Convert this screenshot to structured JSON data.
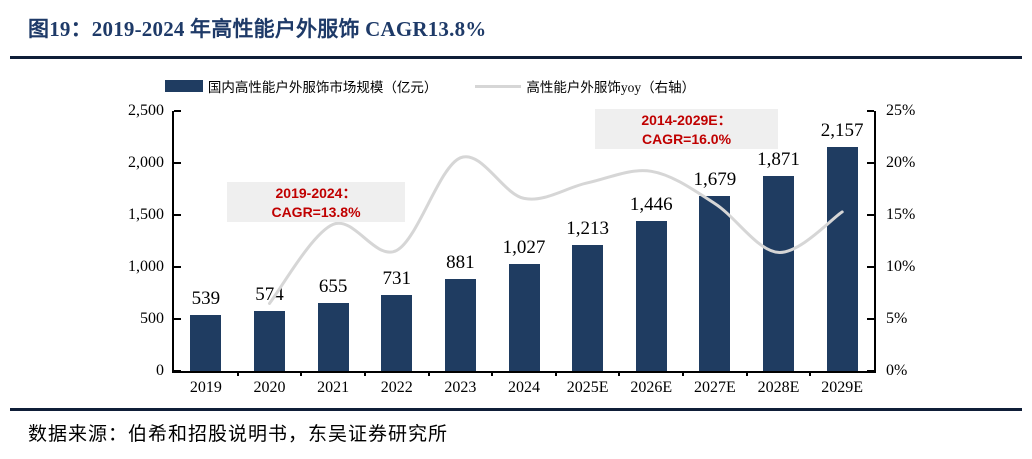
{
  "figure": {
    "title": "图19：2019-2024 年高性能户外服饰 CAGR13.8%",
    "source": "数据来源：伯希和招股说明书，东吴证券研究所"
  },
  "colors": {
    "bar": "#1f3c61",
    "line": "#d6d6d6",
    "title": "#1e3a68",
    "annotation_text": "#c00000",
    "annotation_bg": "#efefef",
    "axis": "#000000"
  },
  "chart_data": {
    "type": "bar",
    "subtype": "bar+line combo, dual axis",
    "title": "图19：2019-2024 年高性能户外服饰 CAGR13.8%",
    "categories": [
      "2019",
      "2020",
      "2021",
      "2022",
      "2023",
      "2024",
      "2025E",
      "2026E",
      "2027E",
      "2028E",
      "2029E"
    ],
    "series": [
      {
        "name": "国内高性能户外服饰市场规模（亿元）",
        "type": "bar",
        "axis": "left",
        "color": "#1f3c61",
        "values": [
          539,
          574,
          655,
          731,
          881,
          1027,
          1213,
          1446,
          1679,
          1871,
          2157
        ],
        "value_labels": [
          "539",
          "574",
          "655",
          "731",
          "881",
          "1,027",
          "1,213",
          "1,446",
          "1,679",
          "1,871",
          "2,157"
        ]
      },
      {
        "name": "高性能户外服饰yoy（右轴）",
        "type": "line",
        "axis": "right",
        "color": "#d6d6d6",
        "smoothed": true,
        "values_pct": [
          null,
          6.5,
          14.1,
          11.6,
          20.5,
          16.6,
          18.1,
          19.2,
          16.1,
          11.4,
          15.3
        ]
      }
    ],
    "left_axis": {
      "min": 0,
      "max": 2500,
      "tick_labels": [
        "2,500",
        "2,000",
        "1,500",
        "1,000",
        "500",
        "0"
      ]
    },
    "right_axis": {
      "min_pct": 0,
      "max_pct": 25,
      "tick_labels": [
        "25%",
        "20%",
        "15%",
        "10%",
        "5%",
        "0%"
      ]
    },
    "grid": false,
    "legend_position": "top",
    "annotations": [
      {
        "line1": "2019-2024：",
        "line2": "CAGR=13.8%"
      },
      {
        "line1": "2014-2029E：",
        "line2": "CAGR=16.0%"
      }
    ]
  }
}
